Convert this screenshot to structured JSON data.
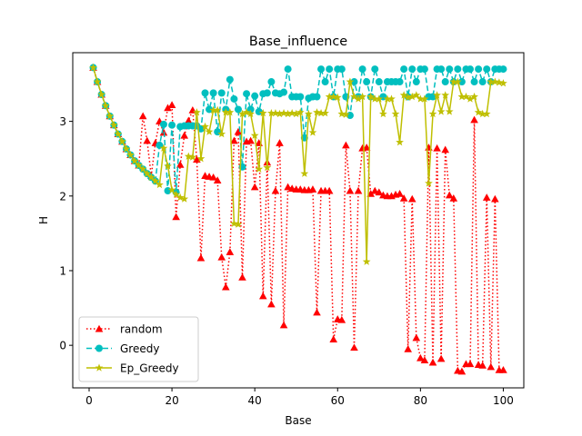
{
  "chart_data": {
    "type": "line",
    "title": "Base_influence",
    "xlabel": "Base",
    "ylabel": "H",
    "xlim": [
      -3.95,
      104.95
    ],
    "ylim": [
      -0.57,
      3.92
    ],
    "x_ticks": [
      0,
      20,
      40,
      60,
      80,
      100
    ],
    "y_ticks": [
      0,
      1,
      2,
      3
    ],
    "grid": false,
    "legend_position": "lower-left",
    "x": [
      1,
      2,
      3,
      4,
      5,
      6,
      7,
      8,
      9,
      10,
      11,
      12,
      13,
      14,
      15,
      16,
      17,
      18,
      19,
      20,
      21,
      22,
      23,
      24,
      25,
      26,
      27,
      28,
      29,
      30,
      31,
      32,
      33,
      34,
      35,
      36,
      37,
      38,
      39,
      40,
      41,
      42,
      43,
      44,
      45,
      46,
      47,
      48,
      49,
      50,
      51,
      52,
      53,
      54,
      55,
      56,
      57,
      58,
      59,
      60,
      61,
      62,
      63,
      64,
      65,
      66,
      67,
      68,
      69,
      70,
      71,
      72,
      73,
      74,
      75,
      76,
      77,
      78,
      79,
      80,
      81,
      82,
      83,
      84,
      85,
      86,
      87,
      88,
      89,
      90,
      91,
      92,
      93,
      94,
      95,
      96,
      97,
      98,
      99,
      100
    ],
    "series": [
      {
        "name": "random",
        "color": "#ff0000",
        "linestyle": "dotted",
        "marker": "triangle",
        "values": [
          3.72,
          3.53,
          3.36,
          3.21,
          3.07,
          2.95,
          2.83,
          2.73,
          2.63,
          2.55,
          2.47,
          2.41,
          3.07,
          2.74,
          2.27,
          2.71,
          3.0,
          2.85,
          3.18,
          3.22,
          1.72,
          2.42,
          2.81,
          3.01,
          3.15,
          2.49,
          1.17,
          2.27,
          2.26,
          2.25,
          2.21,
          1.18,
          0.78,
          1.25,
          2.74,
          2.86,
          0.91,
          2.73,
          2.74,
          2.12,
          2.71,
          0.66,
          2.45,
          0.55,
          2.07,
          2.71,
          0.27,
          2.12,
          2.1,
          2.09,
          2.09,
          2.08,
          2.08,
          2.09,
          0.44,
          2.07,
          2.07,
          2.07,
          0.08,
          0.35,
          0.34,
          2.68,
          2.07,
          -0.03,
          2.07,
          2.64,
          2.65,
          2.03,
          2.07,
          2.05,
          2.01,
          2.0,
          2.0,
          2.02,
          2.03,
          1.97,
          -0.05,
          1.96,
          0.1,
          -0.17,
          -0.2,
          2.65,
          -0.23,
          2.64,
          -0.18,
          2.62,
          2.01,
          1.97,
          -0.34,
          -0.35,
          -0.25,
          -0.25,
          3.02,
          -0.26,
          -0.27,
          1.98,
          -0.29,
          1.96,
          -0.33,
          -0.33
        ]
      },
      {
        "name": "Greedy",
        "color": "#00bfbf",
        "linestyle": "dashed",
        "marker": "circle",
        "values": [
          3.72,
          3.53,
          3.36,
          3.21,
          3.07,
          2.95,
          2.83,
          2.73,
          2.63,
          2.55,
          2.47,
          2.41,
          2.36,
          2.3,
          2.25,
          2.2,
          2.68,
          2.96,
          2.07,
          2.95,
          2.05,
          2.93,
          2.94,
          2.94,
          2.94,
          2.94,
          2.9,
          3.38,
          3.16,
          3.38,
          2.86,
          3.38,
          3.16,
          3.56,
          3.3,
          3.16,
          2.39,
          3.37,
          3.16,
          3.34,
          3.13,
          3.37,
          3.38,
          3.53,
          3.38,
          3.37,
          3.39,
          3.7,
          3.33,
          3.33,
          3.33,
          2.78,
          3.31,
          3.33,
          3.33,
          3.7,
          3.53,
          3.7,
          3.33,
          3.7,
          3.7,
          3.33,
          3.08,
          3.53,
          3.33,
          3.7,
          3.53,
          3.33,
          3.7,
          3.53,
          3.33,
          3.53,
          3.53,
          3.53,
          3.53,
          3.7,
          3.33,
          3.7,
          3.53,
          3.7,
          3.7,
          3.33,
          3.33,
          3.7,
          3.7,
          3.53,
          3.7,
          3.53,
          3.7,
          3.53,
          3.7,
          3.7,
          3.53,
          3.7,
          3.53,
          3.7,
          3.53,
          3.7,
          3.7,
          3.7
        ]
      },
      {
        "name": "Ep_Greedy",
        "color": "#bfbf00",
        "linestyle": "solid",
        "marker": "star",
        "values": [
          3.72,
          3.53,
          3.36,
          3.21,
          3.07,
          2.95,
          2.83,
          2.73,
          2.63,
          2.55,
          2.47,
          2.41,
          2.36,
          2.3,
          2.25,
          2.2,
          2.15,
          2.64,
          2.4,
          2.08,
          2.02,
          1.98,
          1.96,
          2.53,
          2.52,
          3.12,
          2.5,
          2.93,
          2.86,
          3.15,
          3.15,
          2.83,
          3.12,
          3.12,
          1.63,
          1.62,
          3.1,
          3.12,
          3.1,
          2.81,
          2.36,
          3.11,
          2.38,
          3.11,
          3.11,
          3.1,
          3.11,
          3.1,
          3.11,
          3.1,
          3.12,
          2.3,
          3.1,
          2.85,
          3.12,
          3.11,
          3.11,
          3.33,
          3.33,
          3.32,
          3.1,
          3.09,
          3.53,
          3.33,
          3.3,
          3.33,
          1.12,
          3.33,
          3.3,
          3.3,
          3.1,
          3.3,
          3.3,
          3.1,
          2.72,
          3.35,
          3.32,
          3.33,
          3.35,
          3.3,
          3.3,
          2.17,
          3.1,
          3.35,
          3.13,
          3.35,
          3.13,
          3.53,
          3.53,
          3.33,
          3.33,
          3.3,
          3.33,
          3.12,
          3.1,
          3.1,
          3.53,
          3.53,
          3.52,
          3.51
        ]
      }
    ]
  }
}
